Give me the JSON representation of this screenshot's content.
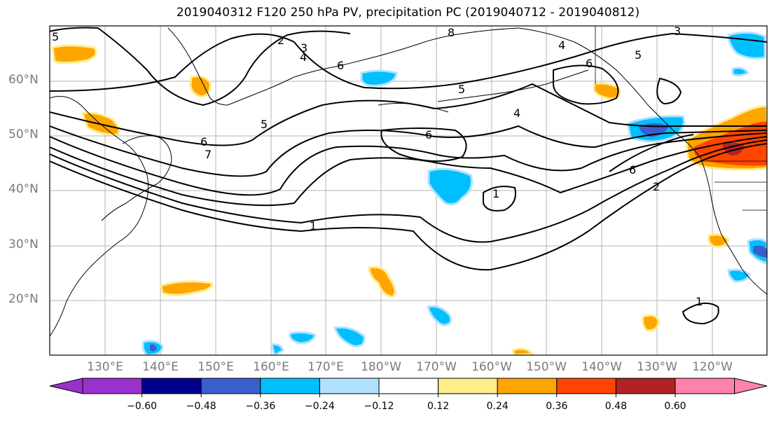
{
  "title": "2019040312 F120 250 hPa PV, precipitation PC (2019040712 - 2019040812)",
  "lat_labels": [
    "60°N",
    "50°N",
    "40°N",
    "30°N",
    "20°N"
  ],
  "lon_labels": [
    "130°E",
    "140°E",
    "150°E",
    "160°E",
    "170°E",
    "180°W",
    "170°W",
    "160°W",
    "150°W",
    "140°W",
    "130°W",
    "120°W"
  ],
  "colorbar": {
    "ticks": [
      "−0.60",
      "−0.48",
      "−0.36",
      "−0.24",
      "−0.12",
      "0.12",
      "0.24",
      "0.36",
      "0.48",
      "0.60"
    ],
    "colors": [
      "#9932cc",
      "#00008b",
      "#3a5fcd",
      "#00bfff",
      "#b0e2ff",
      "#ffffff",
      "#ffec8b",
      "#ffa500",
      "#ff4500",
      "#b22222",
      "#ff82ab"
    ]
  },
  "contour_labels": [
    "2",
    "3",
    "4",
    "8",
    "4",
    "5",
    "3",
    "6",
    "6",
    "5",
    "5",
    "6",
    "7",
    "6",
    "4",
    "6",
    "2",
    "1",
    "1",
    "1",
    "5"
  ]
}
